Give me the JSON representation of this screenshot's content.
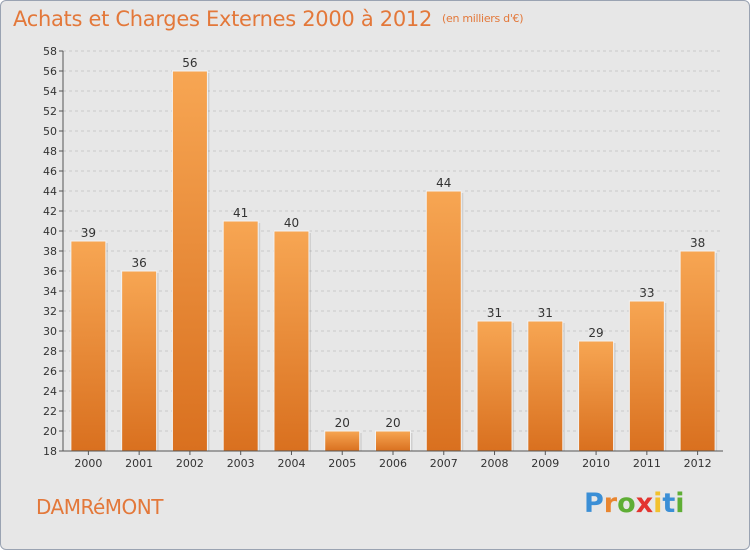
{
  "header": {
    "title": "Achats et Charges Externes 2000 à 2012",
    "unit": "(en milliers d'€)"
  },
  "footer": {
    "commune": "DAMRéMONT",
    "logo_letters": [
      {
        "char": "P",
        "color": "#3b8fd6"
      },
      {
        "char": "r",
        "color": "#e9852f"
      },
      {
        "char": "o",
        "color": "#5fae35"
      },
      {
        "char": "x",
        "color": "#e3342f"
      },
      {
        "char": "i",
        "color": "#f2c12e"
      },
      {
        "char": "t",
        "color": "#3b8fd6"
      },
      {
        "char": "i",
        "color": "#5fae35"
      }
    ]
  },
  "chart_data": {
    "type": "bar",
    "categories": [
      "2000",
      "2001",
      "2002",
      "2003",
      "2004",
      "2005",
      "2006",
      "2007",
      "2008",
      "2009",
      "2010",
      "2011",
      "2012"
    ],
    "values": [
      39,
      36,
      56,
      41,
      40,
      20,
      20,
      44,
      31,
      31,
      29,
      33,
      38
    ],
    "title": "Achats et Charges Externes 2000 à 2012",
    "ylim": [
      18,
      58
    ],
    "yticks": [
      18,
      20,
      22,
      24,
      26,
      28,
      30,
      32,
      34,
      36,
      38,
      40,
      42,
      44,
      46,
      48,
      50,
      52,
      54,
      56,
      58
    ],
    "grid": true,
    "bar_color_top": "#f7a653",
    "bar_color_bottom": "#d9701f"
  }
}
